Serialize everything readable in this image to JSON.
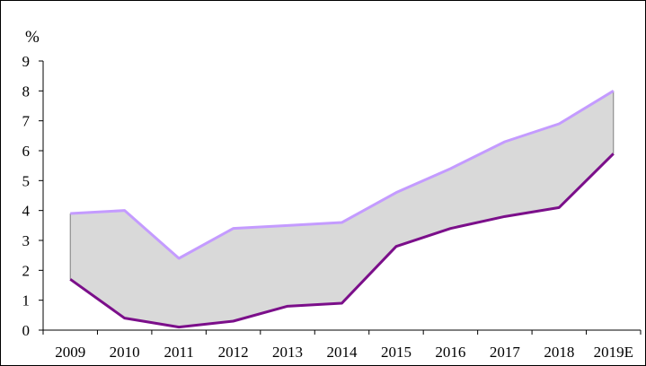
{
  "chart_data": {
    "type": "area",
    "unit_label": "%",
    "categories": [
      "2009",
      "2010",
      "2011",
      "2012",
      "2013",
      "2014",
      "2015",
      "2016",
      "2017",
      "2018",
      "2019E"
    ],
    "series": [
      {
        "values": [
          3.9,
          4.0,
          2.4,
          3.4,
          3.5,
          3.6,
          4.6,
          5.4,
          6.3,
          6.9,
          8.0
        ]
      },
      {
        "values": [
          1.7,
          0.4,
          0.1,
          0.3,
          0.8,
          0.9,
          2.8,
          3.4,
          3.8,
          4.1,
          5.9
        ]
      }
    ],
    "ylim": [
      0,
      9
    ],
    "yticks": [
      0,
      1,
      2,
      3,
      4,
      5,
      6,
      7,
      8,
      9
    ],
    "grid": false,
    "fill_between_series": true,
    "colors": {
      "upper_line": "#c49bff",
      "lower_line": "#7b0f8a",
      "band_fill": "#d9d9d9",
      "band_edge": "#808080",
      "axis": "#000000"
    }
  }
}
